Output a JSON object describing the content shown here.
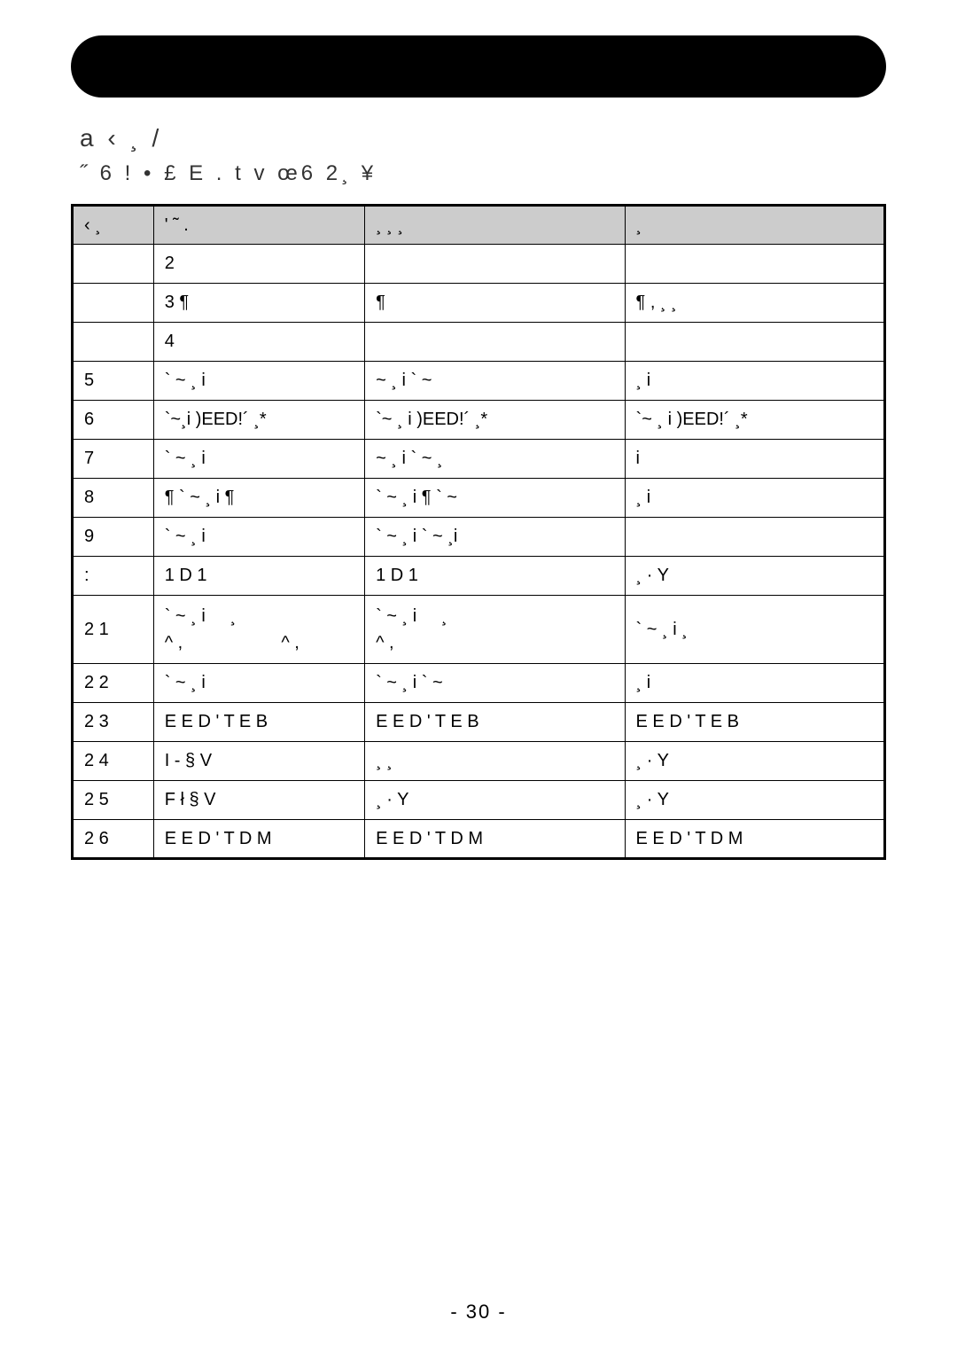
{
  "heading1": "a ‹ ¸ /",
  "heading2": "˝ 6 ! • £  E . t v œ6 2¸  ¥",
  "table": {
    "header": [
      "‹ ¸",
      "' ˜ .",
      "¸                    ¸    ¸",
      "¸"
    ],
    "rows": [
      [
        "",
        "2",
        "",
        ""
      ],
      [
        "",
        "3              ¶",
        "¶",
        "¶ ,  ¸       ¸"
      ],
      [
        "",
        "4",
        "",
        ""
      ],
      [
        "5",
        "` ~ ¸ i",
        "~ ¸ i                          ` ~",
        "¸ i"
      ],
      [
        "6",
        "`~¸i      )EED!´ ¸*",
        "`~ ¸ i      )EED!´ ¸*",
        "`~ ¸ i      )EED!´ ¸*"
      ],
      [
        "7",
        "` ~ ¸ i",
        "~ ¸ i                          ` ~ ¸",
        "i"
      ],
      [
        "8",
        "¶  ` ~ ¸ i         ¶",
        "` ~ ¸ i             ¶  ` ~",
        "¸ i"
      ],
      [
        "9",
        "` ~ ¸ i",
        "` ~ ¸ i                    ` ~ ¸i",
        ""
      ],
      [
        ":",
        "1 D 1",
        "1 D 1",
        "¸ · Y"
      ],
      [
        "2 1",
        "` ~ ¸ i     ¸\n^ ,                    ^ ,",
        "` ~ ¸ i     ¸\n^ ,",
        "` ~ ¸ i     ¸"
      ],
      [
        "2 2",
        "` ~ ¸ i",
        "` ~ ¸ i                        ` ~",
        "¸ i"
      ],
      [
        "2 3",
        "E E D ' T E B",
        "E E D ' T E B",
        "E E D ' T E B"
      ],
      [
        "2 4",
        "I - § V",
        "¸       ¸",
        "¸ · Y"
      ],
      [
        "2 5",
        "F ł § V",
        "¸ · Y",
        "¸ · Y"
      ],
      [
        "2 6",
        "E E D ' T D M",
        "E E D ' T D M",
        "E E D ' T D M"
      ]
    ]
  },
  "pageNumber": "- 30 -"
}
